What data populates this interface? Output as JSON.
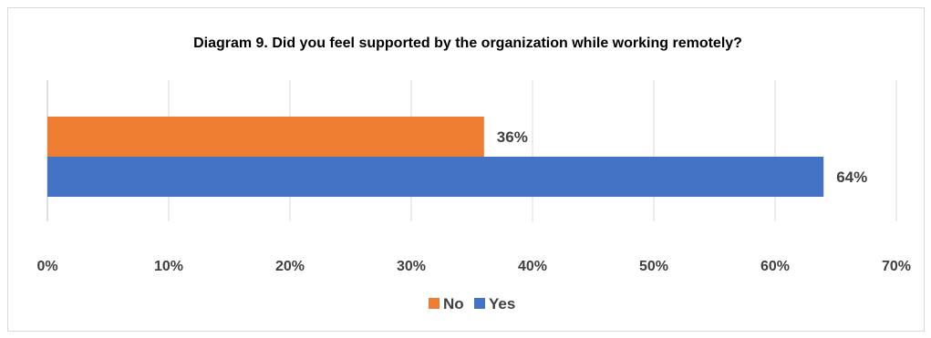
{
  "chart_data": {
    "type": "bar",
    "orientation": "horizontal",
    "title": "Diagram 9. Did you feel supported by the organization while working remotely?",
    "xlabel": "",
    "ylabel": "",
    "x_ticks": [
      "0%",
      "10%",
      "20%",
      "30%",
      "40%",
      "50%",
      "60%",
      "70%"
    ],
    "xlim": [
      0,
      70
    ],
    "grid": "vertical",
    "legend_position": "bottom",
    "series": [
      {
        "name": "No",
        "value": 36,
        "label": "36%",
        "color": "#ED7D31"
      },
      {
        "name": "Yes",
        "value": 64,
        "label": "64%",
        "color": "#4472C4"
      }
    ]
  }
}
